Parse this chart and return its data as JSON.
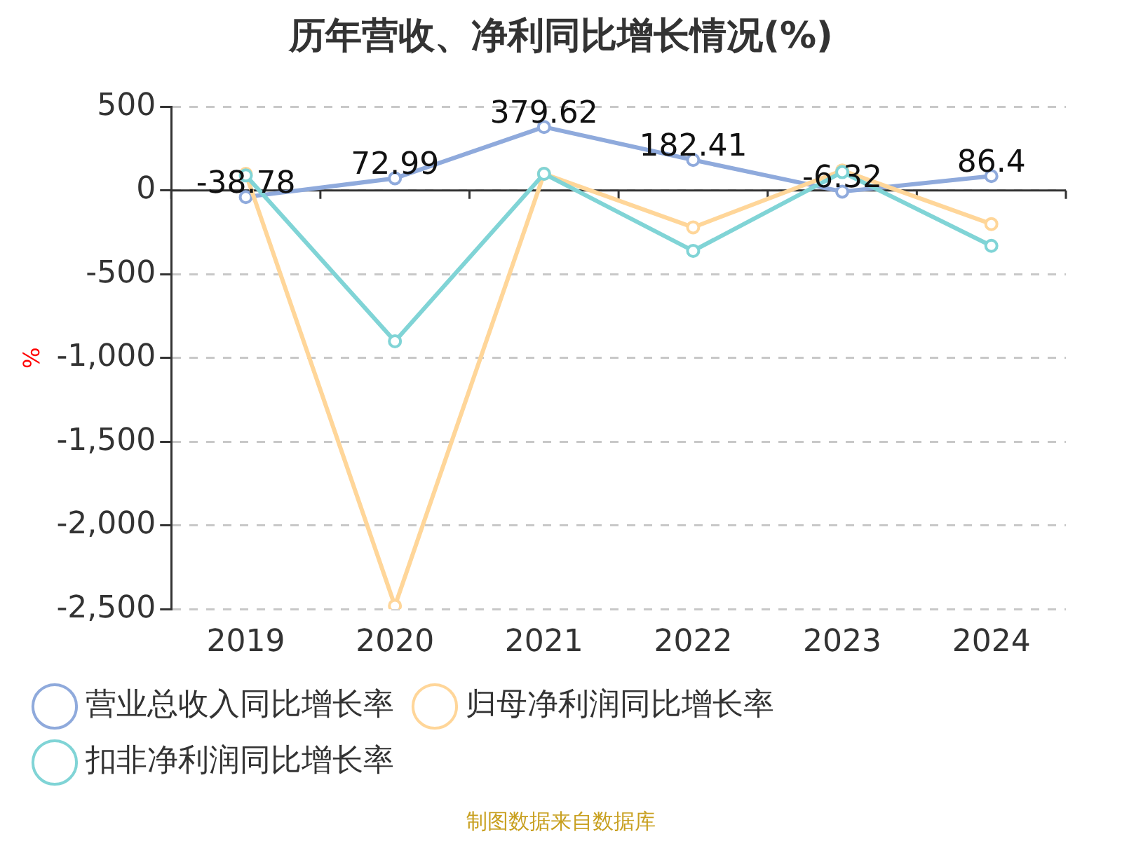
{
  "chart_data": {
    "type": "line",
    "title": "历年营收、净利同比增长情况(%)",
    "ylabel": "%",
    "categories": [
      "2019",
      "2020",
      "2021",
      "2022",
      "2023",
      "2024"
    ],
    "series": [
      {
        "name": "营业总收入同比增长率",
        "color": "#8faadc",
        "values": [
          -38.78,
          72.99,
          379.62,
          182.41,
          -6.32,
          86.4
        ],
        "value_labels": [
          "-38.78",
          "72.99",
          "379.62",
          "182.41",
          "-6.32",
          "86.4"
        ]
      },
      {
        "name": "归母净利润同比增长率",
        "color": "#ffd699",
        "values": [
          100,
          -2480,
          100,
          -220,
          120,
          -200
        ]
      },
      {
        "name": "扣非净利润同比增长率",
        "color": "#80d4d6",
        "values": [
          90,
          -900,
          100,
          -360,
          110,
          -330
        ]
      }
    ],
    "ylim": [
      -2500,
      500
    ],
    "yticks": [
      {
        "value": 500,
        "label": "500"
      },
      {
        "value": 0,
        "label": "0"
      },
      {
        "value": -500,
        "label": "-500"
      },
      {
        "value": -1000,
        "label": "-1,000"
      },
      {
        "value": -1500,
        "label": "-1,500"
      },
      {
        "value": -2000,
        "label": "-2,000"
      },
      {
        "value": -2500,
        "label": "-2,500"
      }
    ],
    "grid": "y",
    "legend": "bottom",
    "marker": "circle",
    "line_style": "solid",
    "annotations": [
      "制图数据来自数据库"
    ]
  }
}
